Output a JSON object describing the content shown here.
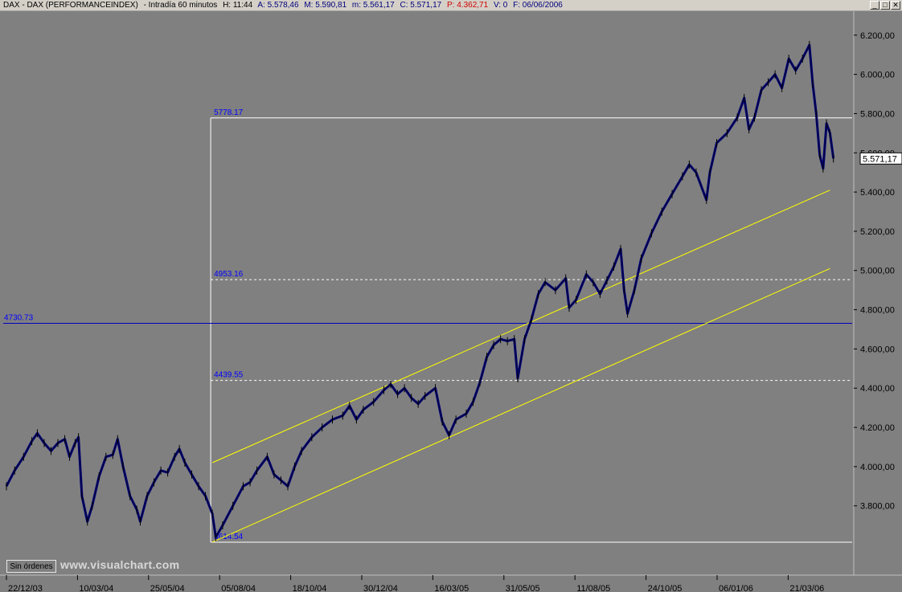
{
  "window": {
    "symbol": "DAX - DAX (PERFORMANCEINDEX)",
    "interval": "- Intradía 60 minutos",
    "high": "H: 11:44",
    "ask": "A: 5.578,46",
    "max": "M: 5.590,81",
    "min": "m: 5.561,17",
    "close": "C: 5.571,17",
    "points": "P: 4.362,71",
    "volume": "V: 0",
    "date": "F: 06/06/2006",
    "buttons": [
      "_",
      "□",
      "✕"
    ]
  },
  "toolbar": {
    "orders_label": "Sin órdenes",
    "watermark": "www.visualchart.com"
  },
  "colors": {
    "background": "#808080",
    "price_series": "#00007b",
    "annotation": "#0000ff",
    "channel": "#ffff00",
    "levels": "#ffffff",
    "support_line": "#0000c0"
  },
  "chart_data": {
    "type": "line",
    "x_tick_labels": [
      "22/12/03",
      "10/03/04",
      "25/05/04",
      "05/08/04",
      "18/10/04",
      "30/12/04",
      "16/03/05",
      "31/05/05",
      "11/08/05",
      "24/10/05",
      "06/01/06",
      "21/03/06"
    ],
    "y_tick_labels": [
      "6.200,00",
      "6.000,00",
      "5.800,00",
      "5.600,00",
      "5.400,00",
      "5.200,00",
      "5.000,00",
      "4.800,00",
      "4.600,00",
      "4.400,00",
      "4.200,00",
      "4.000,00",
      "3.800,00"
    ],
    "y_ticks": [
      6200,
      6000,
      5800,
      5600,
      5400,
      5200,
      5000,
      4800,
      4600,
      4400,
      4200,
      4000,
      3800
    ],
    "ylim": [
      3590,
      6240
    ],
    "last_price_label": "5.571,17",
    "last_price": 5571.17,
    "horizontal_level": {
      "label": "4730.73",
      "value": 4730.73
    },
    "fibonacci": [
      {
        "label": "5778.17",
        "value": 5778.17,
        "style": "solid"
      },
      {
        "label": "4953.16",
        "value": 4953.16,
        "style": "dashed"
      },
      {
        "label": "4439.55",
        "value": 4439.55,
        "style": "dashed"
      },
      {
        "label": "3614.54",
        "value": 3614.54,
        "style": "solid"
      }
    ],
    "channel_lines": [
      {
        "from": [
          3.0,
          4020
        ],
        "to": [
          12.0,
          5410
        ]
      },
      {
        "from": [
          3.0,
          3615
        ],
        "to": [
          12.0,
          5010
        ]
      }
    ],
    "x_domain": [
      0,
      12.3
    ],
    "series": [
      {
        "values": [
          [
            0.0,
            3900
          ],
          [
            0.12,
            3980
          ],
          [
            0.25,
            4050
          ],
          [
            0.37,
            4130
          ],
          [
            0.45,
            4170
          ],
          [
            0.55,
            4120
          ],
          [
            0.65,
            4080
          ],
          [
            0.75,
            4120
          ],
          [
            0.85,
            4140
          ],
          [
            0.92,
            4050
          ],
          [
            1.0,
            4120
          ],
          [
            1.05,
            4150
          ],
          [
            1.1,
            3850
          ],
          [
            1.18,
            3720
          ],
          [
            1.25,
            3800
          ],
          [
            1.35,
            3950
          ],
          [
            1.45,
            4050
          ],
          [
            1.55,
            4060
          ],
          [
            1.62,
            4140
          ],
          [
            1.7,
            4000
          ],
          [
            1.8,
            3850
          ],
          [
            1.9,
            3780
          ],
          [
            1.95,
            3720
          ],
          [
            2.05,
            3850
          ],
          [
            2.15,
            3920
          ],
          [
            2.25,
            3980
          ],
          [
            2.35,
            3970
          ],
          [
            2.45,
            4050
          ],
          [
            2.52,
            4090
          ],
          [
            2.6,
            4020
          ],
          [
            2.7,
            3960
          ],
          [
            2.8,
            3900
          ],
          [
            2.9,
            3850
          ],
          [
            3.0,
            3760
          ],
          [
            3.05,
            3640
          ],
          [
            3.15,
            3700
          ],
          [
            3.3,
            3800
          ],
          [
            3.45,
            3900
          ],
          [
            3.55,
            3920
          ],
          [
            3.65,
            3980
          ],
          [
            3.8,
            4050
          ],
          [
            3.9,
            3960
          ],
          [
            4.0,
            3930
          ],
          [
            4.1,
            3900
          ],
          [
            4.2,
            4000
          ],
          [
            4.3,
            4080
          ],
          [
            4.45,
            4150
          ],
          [
            4.6,
            4200
          ],
          [
            4.75,
            4240
          ],
          [
            4.9,
            4260
          ],
          [
            5.0,
            4310
          ],
          [
            5.1,
            4240
          ],
          [
            5.2,
            4290
          ],
          [
            5.35,
            4330
          ],
          [
            5.5,
            4390
          ],
          [
            5.6,
            4420
          ],
          [
            5.7,
            4370
          ],
          [
            5.8,
            4400
          ],
          [
            5.9,
            4350
          ],
          [
            6.0,
            4320
          ],
          [
            6.1,
            4360
          ],
          [
            6.25,
            4400
          ],
          [
            6.35,
            4230
          ],
          [
            6.45,
            4160
          ],
          [
            6.55,
            4240
          ],
          [
            6.7,
            4270
          ],
          [
            6.8,
            4330
          ],
          [
            6.9,
            4430
          ],
          [
            7.0,
            4560
          ],
          [
            7.1,
            4620
          ],
          [
            7.2,
            4650
          ],
          [
            7.3,
            4640
          ],
          [
            7.4,
            4650
          ],
          [
            7.45,
            4450
          ],
          [
            7.55,
            4650
          ],
          [
            7.65,
            4750
          ],
          [
            7.75,
            4880
          ],
          [
            7.85,
            4940
          ],
          [
            8.0,
            4900
          ],
          [
            8.15,
            4960
          ],
          [
            8.2,
            4810
          ],
          [
            8.3,
            4850
          ],
          [
            8.45,
            4980
          ],
          [
            8.55,
            4940
          ],
          [
            8.65,
            4880
          ],
          [
            8.75,
            4950
          ],
          [
            8.85,
            5020
          ],
          [
            8.95,
            5110
          ],
          [
            9.0,
            4900
          ],
          [
            9.05,
            4780
          ],
          [
            9.15,
            4900
          ],
          [
            9.25,
            5060
          ],
          [
            9.4,
            5190
          ],
          [
            9.55,
            5300
          ],
          [
            9.7,
            5390
          ],
          [
            9.85,
            5480
          ],
          [
            9.95,
            5540
          ],
          [
            10.05,
            5500
          ],
          [
            10.2,
            5360
          ],
          [
            10.25,
            5500
          ],
          [
            10.35,
            5650
          ],
          [
            10.5,
            5700
          ],
          [
            10.65,
            5780
          ],
          [
            10.75,
            5880
          ],
          [
            10.82,
            5720
          ],
          [
            10.9,
            5780
          ],
          [
            11.0,
            5920
          ],
          [
            11.1,
            5960
          ],
          [
            11.2,
            6000
          ],
          [
            11.3,
            5930
          ],
          [
            11.4,
            6080
          ],
          [
            11.5,
            6020
          ],
          [
            11.6,
            6080
          ],
          [
            11.7,
            6150
          ],
          [
            11.75,
            5950
          ],
          [
            11.8,
            5800
          ],
          [
            11.85,
            5590
          ],
          [
            11.9,
            5520
          ],
          [
            11.95,
            5750
          ],
          [
            12.0,
            5700
          ],
          [
            12.05,
            5571
          ]
        ]
      }
    ]
  }
}
